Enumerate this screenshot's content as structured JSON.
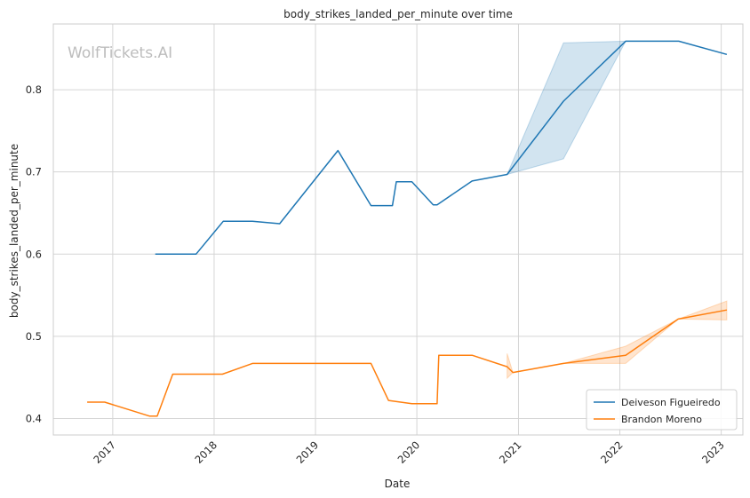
{
  "watermark": "WolfTickets.AI",
  "chart_data": {
    "type": "line",
    "title": "body_strikes_landed_per_minute over time",
    "xlabel": "Date",
    "ylabel": "body_strikes_landed_per_minute",
    "x_tick_labels": [
      "2017",
      "2018",
      "2019",
      "2020",
      "2021",
      "2022",
      "2023"
    ],
    "y_tick_labels": [
      "0.4",
      "0.5",
      "0.6",
      "0.7",
      "0.8"
    ],
    "xlim": [
      "2016-06-01",
      "2023-03-20"
    ],
    "ylim": [
      0.38,
      0.88
    ],
    "grid": true,
    "legend_position": "lower-right",
    "series": [
      {
        "name": "Deiveson Figueiredo",
        "color": "#1f77b4",
        "points": [
          {
            "x": "2017-06-03",
            "y": 0.6
          },
          {
            "x": "2017-10-28",
            "y": 0.6
          },
          {
            "x": "2018-02-03",
            "y": 0.64
          },
          {
            "x": "2018-05-19",
            "y": 0.64
          },
          {
            "x": "2018-08-25",
            "y": 0.637
          },
          {
            "x": "2019-03-23",
            "y": 0.726
          },
          {
            "x": "2019-07-20",
            "y": 0.659
          },
          {
            "x": "2019-10-05",
            "y": 0.659
          },
          {
            "x": "2019-10-19",
            "y": 0.688
          },
          {
            "x": "2019-12-14",
            "y": 0.688
          },
          {
            "x": "2020-02-29",
            "y": 0.66
          },
          {
            "x": "2020-03-14",
            "y": 0.66
          },
          {
            "x": "2020-07-18",
            "y": 0.689
          },
          {
            "x": "2020-11-21",
            "y": 0.697
          },
          {
            "x": "2021-06-12",
            "y": 0.786
          },
          {
            "x": "2022-01-22",
            "y": 0.859
          },
          {
            "x": "2022-08-01",
            "y": 0.859
          },
          {
            "x": "2023-01-21",
            "y": 0.843
          }
        ],
        "band": [
          {
            "x": "2020-11-21",
            "lo": 0.697,
            "hi": 0.697
          },
          {
            "x": "2021-06-12",
            "lo": 0.716,
            "hi": 0.857
          },
          {
            "x": "2022-01-22",
            "lo": 0.859,
            "hi": 0.859
          }
        ]
      },
      {
        "name": "Brandon Moreno",
        "color": "#ff7f0e",
        "points": [
          {
            "x": "2016-10-01",
            "y": 0.42
          },
          {
            "x": "2016-12-03",
            "y": 0.42
          },
          {
            "x": "2017-05-13",
            "y": 0.403
          },
          {
            "x": "2017-06-10",
            "y": 0.403
          },
          {
            "x": "2017-08-05",
            "y": 0.454
          },
          {
            "x": "2018-01-31",
            "y": 0.454
          },
          {
            "x": "2018-05-19",
            "y": 0.467
          },
          {
            "x": "2019-07-20",
            "y": 0.467
          },
          {
            "x": "2019-09-21",
            "y": 0.422
          },
          {
            "x": "2019-12-14",
            "y": 0.418
          },
          {
            "x": "2020-03-14",
            "y": 0.418
          },
          {
            "x": "2020-03-20",
            "y": 0.477
          },
          {
            "x": "2020-07-18",
            "y": 0.477
          },
          {
            "x": "2020-11-21",
            "y": 0.463
          },
          {
            "x": "2020-12-12",
            "y": 0.456
          },
          {
            "x": "2021-06-12",
            "y": 0.467
          },
          {
            "x": "2022-01-22",
            "y": 0.477
          },
          {
            "x": "2022-07-30",
            "y": 0.521
          },
          {
            "x": "2023-01-21",
            "y": 0.532
          }
        ],
        "band": [
          {
            "x": "2020-11-21",
            "lo": 0.449,
            "hi": 0.479
          },
          {
            "x": "2020-12-12",
            "lo": 0.456,
            "hi": 0.456
          },
          {
            "x": "2021-06-12",
            "lo": 0.467,
            "hi": 0.467
          },
          {
            "x": "2022-01-22",
            "lo": 0.467,
            "hi": 0.488
          },
          {
            "x": "2022-07-30",
            "lo": 0.521,
            "hi": 0.521
          },
          {
            "x": "2023-01-21",
            "lo": 0.52,
            "hi": 0.543
          }
        ]
      }
    ]
  }
}
